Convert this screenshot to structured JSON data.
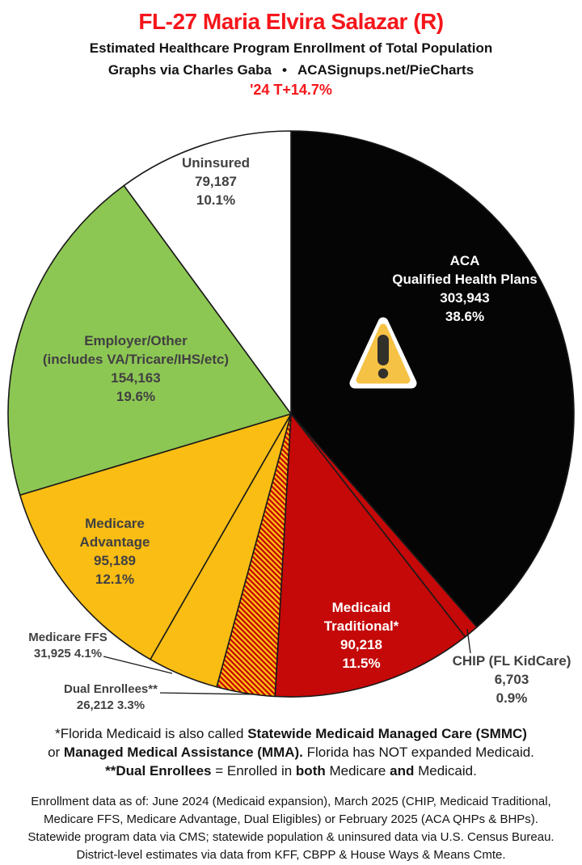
{
  "header": {
    "title": "FL-27 Maria Elvira Salazar (R)",
    "subtitle": "Estimated Healthcare Program Enrollment of Total Population",
    "credit_left": "Graphs via Charles Gaba",
    "credit_separator": "•",
    "credit_right": "ACASignups.net/PieCharts",
    "swing": "'24 T+14.7%",
    "accent_red": "#f5161b"
  },
  "chart_data": {
    "type": "pie",
    "title": "FL-27 Maria Elvira Salazar (R) — Estimated Healthcare Program Enrollment of Total Population",
    "start_angle_deg": 0,
    "direction": "clockwise",
    "slice_label_color": "#414042",
    "white_label_color": "#ffffff",
    "hatch": {
      "base": "#c50808",
      "stripe": "#fec112"
    },
    "slices": [
      {
        "id": "aca-qhp",
        "name": "ACA Qualified Health Plans",
        "value": 303943,
        "pct": 38.6,
        "color": "#050505",
        "label_lines": [
          "ACA",
          "Qualified Health Plans",
          "303,943",
          "38.6%"
        ]
      },
      {
        "id": "chip",
        "name": "CHIP (FL KidCare)",
        "value": 6703,
        "pct": 0.9,
        "color": "#c50808",
        "label_lines": [
          "CHIP (FL KidCare)",
          "6,703",
          "0.9%"
        ]
      },
      {
        "id": "medicaid-traditional",
        "name": "Medicaid Traditional",
        "value": 90218,
        "pct": 11.5,
        "color": "#c50808",
        "label_lines": [
          "Medicaid",
          "Traditional*",
          "90,218",
          "11.5%"
        ]
      },
      {
        "id": "dual-enrollees",
        "name": "Dual Enrollees",
        "value": 26212,
        "pct": 3.3,
        "color": "hatch",
        "label_lines": [
          "Dual Enrollees**",
          "26,212 3.3%"
        ]
      },
      {
        "id": "medicare-ffs",
        "name": "Medicare FFS",
        "value": 31925,
        "pct": 4.1,
        "color": "#f9bd13",
        "label_lines": [
          "Medicare FFS",
          "31,925 4.1%"
        ]
      },
      {
        "id": "medicare-advantage",
        "name": "Medicare Advantage",
        "value": 95189,
        "pct": 12.1,
        "color": "#f9bd13",
        "label_lines": [
          "Medicare",
          "Advantage",
          "95,189",
          "12.1%"
        ]
      },
      {
        "id": "employer-other",
        "name": "Employer/Other (includes VA/Tricare/IHS/etc)",
        "value": 154163,
        "pct": 19.6,
        "color": "#8dc753",
        "label_lines": [
          "Employer/Other",
          "(includes VA/Tricare/IHS/etc)",
          "154,163",
          "19.6%"
        ]
      },
      {
        "id": "uninsured",
        "name": "Uninsured",
        "value": 79187,
        "pct": 10.1,
        "color": "#ffffff",
        "label_lines": [
          "Uninsured",
          "79,187",
          "10.1%"
        ]
      }
    ]
  },
  "footnotes": {
    "lines": [
      [
        {
          "t": "*Florida Medicaid is also called ",
          "b": false
        },
        {
          "t": "Statewide Medicaid Managed Care (SMMC)",
          "b": true
        }
      ],
      [
        {
          "t": "or ",
          "b": false
        },
        {
          "t": "Managed Medical Assistance (MMA).",
          "b": true
        },
        {
          "t": " Florida has NOT expanded Medicaid.",
          "b": false
        }
      ],
      [
        {
          "t": "**Dual Enrollees",
          "b": true
        },
        {
          "t": " = Enrolled in ",
          "b": false
        },
        {
          "t": "both",
          "b": true
        },
        {
          "t": " Medicare ",
          "b": false
        },
        {
          "t": "and",
          "b": true
        },
        {
          "t": " Medicaid.",
          "b": false
        }
      ]
    ]
  },
  "source_note": {
    "lines": [
      "Enrollment data as of: June 2024 (Medicaid expansion), March 2025 (CHIP, Medicaid Traditional,",
      "Medicare FFS, Medicare Advantage, Dual Eligibles) or February 2025 (ACA QHPs & BHPs).",
      "Statewide program data via CMS; statewide population & uninsured data via U.S. Census Bureau.",
      "District-level estimates via data from KFF, CBPP & House Ways & Means Cmte."
    ]
  },
  "icons": {
    "warning": "warning-triangle"
  }
}
